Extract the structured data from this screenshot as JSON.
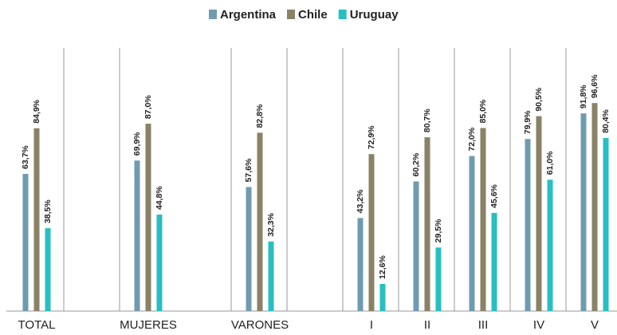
{
  "chart_data": {
    "type": "bar",
    "categories": [
      "TOTAL",
      "MUJERES",
      "VARONES",
      "I",
      "II",
      "III",
      "IV",
      "V"
    ],
    "series": [
      {
        "name": "Argentina",
        "color": "#6f9bb1",
        "values": [
          63.7,
          69.9,
          57.6,
          43.2,
          60.2,
          72.0,
          79.9,
          91.8
        ],
        "value_labels": [
          "63,7%",
          "69,9%",
          "57,6%",
          "43,2%",
          "60,2%",
          "72,0%",
          "79,9%",
          "91,8%"
        ]
      },
      {
        "name": "Chile",
        "color": "#8a8266",
        "values": [
          84.9,
          87.0,
          82.8,
          72.9,
          80.7,
          85.0,
          90.5,
          96.6
        ],
        "value_labels": [
          "84,9%",
          "87,0%",
          "82,8%",
          "72,9%",
          "80,7%",
          "85,0%",
          "90,5%",
          "96,6%"
        ]
      },
      {
        "name": "Uruguay",
        "color": "#27bfc1",
        "values": [
          38.5,
          44.8,
          32.3,
          12.6,
          29.5,
          45.6,
          61.0,
          80.4
        ],
        "value_labels": [
          "38,5%",
          "44,8%",
          "32,3%",
          "12,6%",
          "29,5%",
          "45,6%",
          "61,0%",
          "80,4%"
        ]
      }
    ],
    "ylim": [
      0,
      100
    ],
    "legend": "top"
  }
}
